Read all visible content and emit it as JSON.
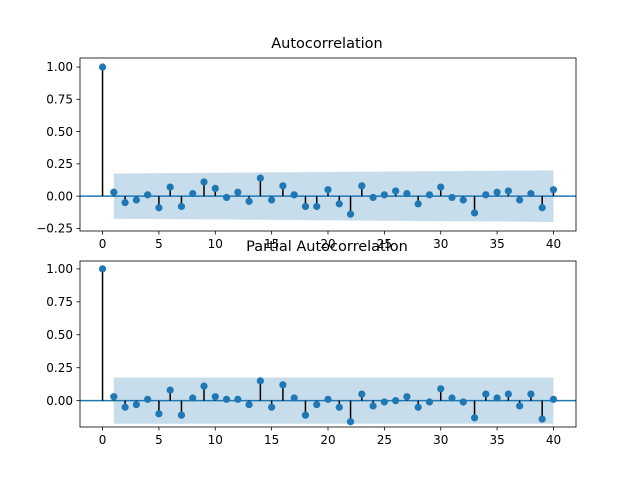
{
  "chart_data": [
    {
      "type": "stem",
      "title": "Autocorrelation",
      "xlabel": "",
      "ylabel": "",
      "xlim": [
        -2,
        42
      ],
      "ylim": [
        -0.27,
        1.07
      ],
      "xticks": [
        0,
        5,
        10,
        15,
        20,
        25,
        30,
        35,
        40
      ],
      "xtick_labels": [
        "0",
        "5",
        "10",
        "15",
        "20",
        "25",
        "30",
        "35",
        "40"
      ],
      "yticks": [
        -0.25,
        0.0,
        0.25,
        0.5,
        0.75,
        1.0
      ],
      "ytick_labels": [
        "−0.25",
        "0.00",
        "0.25",
        "0.50",
        "0.75",
        "1.00"
      ],
      "lags": [
        0,
        1,
        2,
        3,
        4,
        5,
        6,
        7,
        8,
        9,
        10,
        11,
        12,
        13,
        14,
        15,
        16,
        17,
        18,
        19,
        20,
        21,
        22,
        23,
        24,
        25,
        26,
        27,
        28,
        29,
        30,
        31,
        32,
        33,
        34,
        35,
        36,
        37,
        38,
        39,
        40
      ],
      "values": [
        1.0,
        0.03,
        -0.05,
        -0.03,
        0.01,
        -0.09,
        0.07,
        -0.08,
        0.02,
        0.11,
        0.06,
        -0.01,
        0.03,
        -0.04,
        0.14,
        -0.03,
        0.08,
        0.01,
        -0.08,
        -0.08,
        0.05,
        -0.06,
        -0.14,
        0.08,
        -0.01,
        0.01,
        0.04,
        0.02,
        -0.06,
        0.01,
        0.07,
        -0.01,
        -0.03,
        -0.13,
        0.01,
        0.03,
        0.04,
        -0.03,
        0.02,
        -0.09,
        0.05
      ],
      "confidence_band": {
        "lags": [
          1,
          40
        ],
        "upper": [
          0.175,
          0.2
        ],
        "lower": [
          -0.175,
          -0.2
        ]
      },
      "colors": {
        "marker": "#1f77b4",
        "stem": "#000000",
        "band": "#1f77b4",
        "zero_line": "#1f77b4"
      }
    },
    {
      "type": "stem",
      "title": "Partial Autocorrelation",
      "xlabel": "",
      "ylabel": "",
      "xlim": [
        -2,
        42
      ],
      "ylim": [
        -0.2,
        1.06
      ],
      "xticks": [
        0,
        5,
        10,
        15,
        20,
        25,
        30,
        35,
        40
      ],
      "xtick_labels": [
        "0",
        "5",
        "10",
        "15",
        "20",
        "25",
        "30",
        "35",
        "40"
      ],
      "yticks": [
        0.0,
        0.25,
        0.5,
        0.75,
        1.0
      ],
      "ytick_labels": [
        "0.00",
        "0.25",
        "0.50",
        "0.75",
        "1.00"
      ],
      "lags": [
        0,
        1,
        2,
        3,
        4,
        5,
        6,
        7,
        8,
        9,
        10,
        11,
        12,
        13,
        14,
        15,
        16,
        17,
        18,
        19,
        20,
        21,
        22,
        23,
        24,
        25,
        26,
        27,
        28,
        29,
        30,
        31,
        32,
        33,
        34,
        35,
        36,
        37,
        38,
        39,
        40
      ],
      "values": [
        1.0,
        0.03,
        -0.05,
        -0.03,
        0.01,
        -0.1,
        0.08,
        -0.11,
        0.02,
        0.11,
        0.03,
        0.01,
        0.01,
        -0.03,
        0.15,
        -0.05,
        0.12,
        0.02,
        -0.11,
        -0.03,
        0.01,
        -0.05,
        -0.16,
        0.05,
        -0.04,
        -0.01,
        0.0,
        0.03,
        -0.05,
        -0.01,
        0.09,
        0.02,
        -0.01,
        -0.13,
        0.05,
        0.02,
        0.05,
        -0.04,
        0.05,
        -0.14,
        0.01
      ],
      "confidence_band": {
        "lags": [
          1,
          40
        ],
        "upper": [
          0.175,
          0.175
        ],
        "lower": [
          -0.175,
          -0.175
        ]
      },
      "colors": {
        "marker": "#1f77b4",
        "stem": "#000000",
        "band": "#1f77b4",
        "zero_line": "#1f77b4"
      }
    }
  ]
}
